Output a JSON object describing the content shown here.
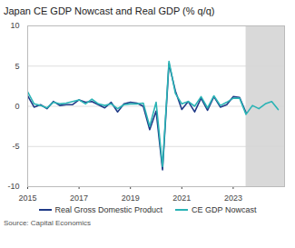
{
  "chart_data": {
    "type": "line",
    "title": "Japan CE GDP Nowcast and Real GDP (% q/q)",
    "source": "Source: Capital Economics",
    "x": [
      2015,
      2015.25,
      2015.5,
      2015.75,
      2016,
      2016.25,
      2016.5,
      2016.75,
      2017,
      2017.25,
      2017.5,
      2017.75,
      2018,
      2018.25,
      2018.5,
      2018.75,
      2019,
      2019.25,
      2019.5,
      2019.75,
      2020,
      2020.25,
      2020.5,
      2020.75,
      2021,
      2021.25,
      2021.5,
      2021.75,
      2022,
      2022.25,
      2022.5,
      2022.75,
      2023,
      2023.25,
      2023.5,
      2023.75,
      2024,
      2024.25,
      2024.5,
      2024.75
    ],
    "series": [
      {
        "name": "Real Gross Domestic Product",
        "color": "#1f3a87",
        "values": [
          1.3,
          -0.1,
          0.2,
          -0.3,
          0.6,
          0.1,
          0.2,
          0.2,
          0.8,
          0.5,
          0.6,
          0.2,
          -0.2,
          0.5,
          -0.7,
          0.3,
          0.5,
          0.4,
          0.0,
          -2.9,
          -0.6,
          -7.9,
          5.3,
          1.9,
          -0.4,
          0.6,
          -0.7,
          1.0,
          -0.5,
          1.2,
          -0.1,
          0.2,
          1.2,
          1.1,
          -0.8,
          null,
          null,
          null,
          null,
          null
        ]
      },
      {
        "name": "CE GDP Nowcast",
        "color": "#2ab3b5",
        "values": [
          1.8,
          0.3,
          0.1,
          -0.2,
          0.5,
          0.3,
          0.4,
          0.6,
          0.8,
          0.3,
          0.9,
          0.3,
          0.1,
          0.3,
          -0.3,
          0.2,
          0.3,
          0.3,
          0.4,
          -2.5,
          0.5,
          -7.5,
          5.6,
          1.6,
          0.3,
          0.6,
          0.0,
          1.2,
          -0.2,
          1.3,
          0.1,
          0.5,
          1.0,
          1.0,
          -1.0,
          0.1,
          -0.3,
          0.3,
          0.6,
          -0.4
        ]
      }
    ],
    "shaded_x": [
      2023.5,
      2025
    ],
    "xlim": [
      2015,
      2025
    ],
    "xticks": [
      2015,
      2017,
      2019,
      2021,
      2023
    ],
    "ylim": [
      -10,
      10
    ],
    "yticks": [
      -10,
      -5,
      0,
      5,
      10
    ],
    "grid": true
  }
}
